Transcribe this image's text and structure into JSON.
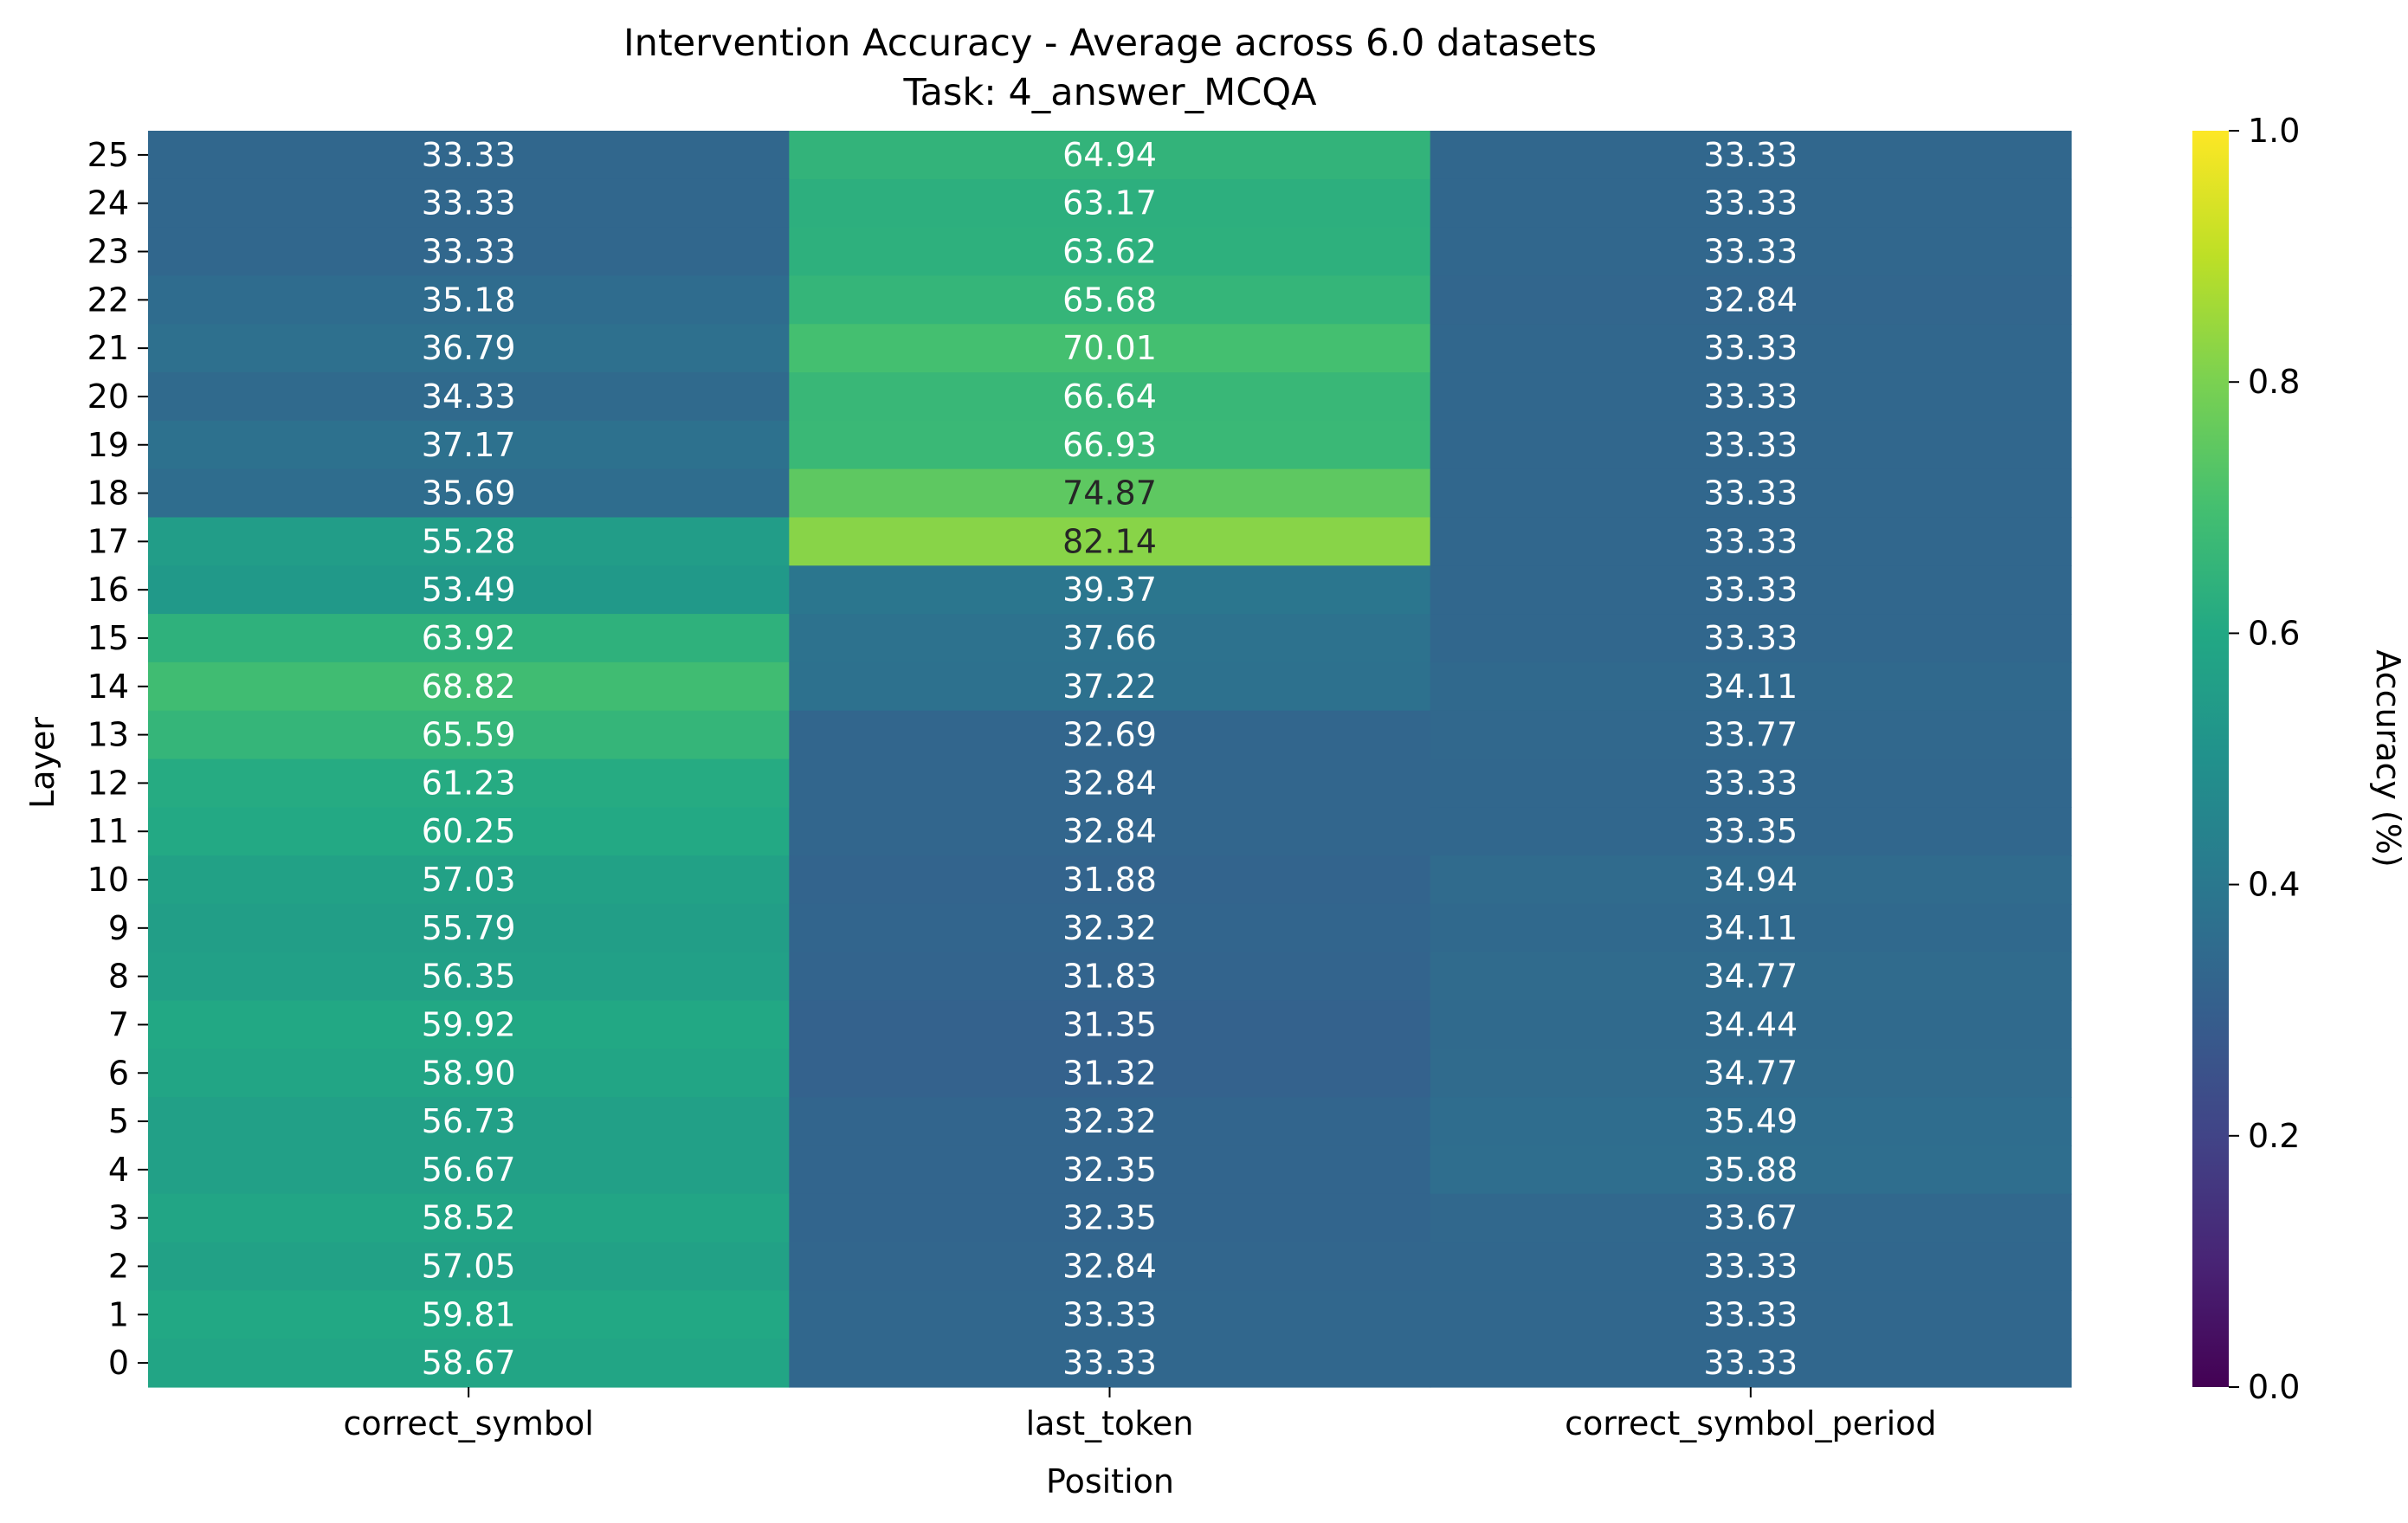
{
  "chart_data": {
    "type": "heatmap",
    "title": "Intervention Accuracy - Average across 6.0 datasets",
    "subtitle": "Task: 4_answer_MCQA",
    "xlabel": "Position",
    "ylabel": "Layer",
    "columns": [
      "correct_symbol",
      "last_token",
      "correct_symbol_period"
    ],
    "rows": [
      "25",
      "24",
      "23",
      "22",
      "21",
      "20",
      "19",
      "18",
      "17",
      "16",
      "15",
      "14",
      "13",
      "12",
      "11",
      "10",
      "9",
      "8",
      "7",
      "6",
      "5",
      "4",
      "3",
      "2",
      "1",
      "0"
    ],
    "values": [
      [
        33.33,
        64.94,
        33.33
      ],
      [
        33.33,
        63.17,
        33.33
      ],
      [
        33.33,
        63.62,
        33.33
      ],
      [
        35.18,
        65.68,
        32.84
      ],
      [
        36.79,
        70.01,
        33.33
      ],
      [
        34.33,
        66.64,
        33.33
      ],
      [
        37.17,
        66.93,
        33.33
      ],
      [
        35.69,
        74.87,
        33.33
      ],
      [
        55.28,
        82.14,
        33.33
      ],
      [
        53.49,
        39.37,
        33.33
      ],
      [
        63.92,
        37.66,
        33.33
      ],
      [
        68.82,
        37.22,
        34.11
      ],
      [
        65.59,
        32.69,
        33.77
      ],
      [
        61.23,
        32.84,
        33.33
      ],
      [
        60.25,
        32.84,
        33.35
      ],
      [
        57.03,
        31.88,
        34.94
      ],
      [
        55.79,
        32.32,
        34.11
      ],
      [
        56.35,
        31.83,
        34.77
      ],
      [
        59.92,
        31.35,
        34.44
      ],
      [
        58.9,
        31.32,
        34.77
      ],
      [
        56.73,
        32.32,
        35.49
      ],
      [
        56.67,
        32.35,
        35.88
      ],
      [
        58.52,
        32.35,
        33.67
      ],
      [
        57.05,
        32.84,
        33.33
      ],
      [
        59.81,
        33.33,
        33.33
      ],
      [
        58.67,
        33.33,
        33.33
      ]
    ],
    "colorbar": {
      "label": "Accuracy (%)",
      "range": [
        0,
        1
      ],
      "ticks": [
        "0.0",
        "0.2",
        "0.4",
        "0.6",
        "0.8",
        "1.0"
      ],
      "colormap": "viridis"
    },
    "annotation_dark_text_color": "#262626",
    "annotation_light_text_color": "#ffffff"
  }
}
